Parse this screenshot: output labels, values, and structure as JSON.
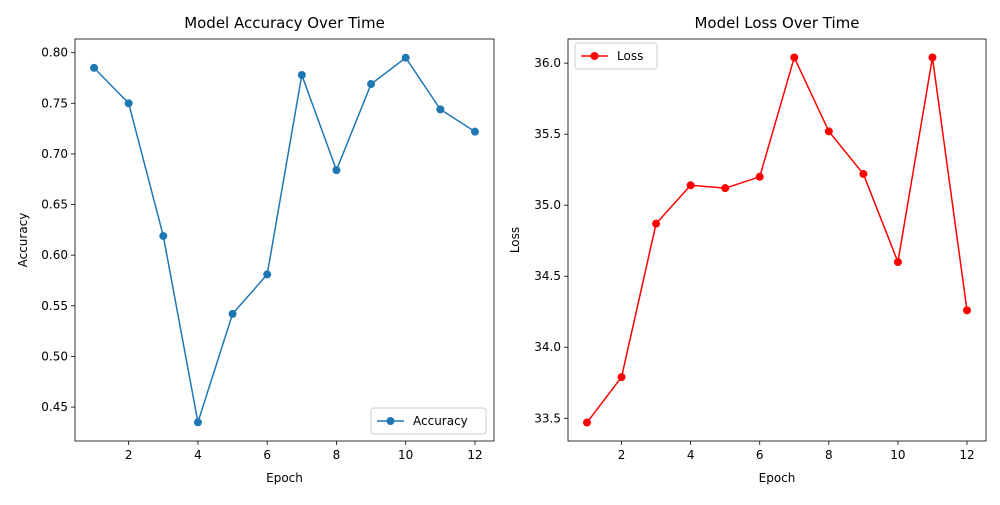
{
  "chart_data": [
    {
      "type": "line",
      "title": "Model Accuracy Over Time",
      "xlabel": "Epoch",
      "ylabel": "Accuracy",
      "xlim": [
        0.45,
        12.55
      ],
      "ylim": [
        0.4165,
        0.8135
      ],
      "xticks": [
        "2",
        "4",
        "6",
        "8",
        "10",
        "12"
      ],
      "yticks": [
        "0.45",
        "0.50",
        "0.55",
        "0.60",
        "0.65",
        "0.70",
        "0.75",
        "0.80"
      ],
      "x": [
        1,
        2,
        3,
        4,
        5,
        6,
        7,
        8,
        9,
        10,
        11,
        12
      ],
      "series": [
        {
          "name": "Accuracy",
          "color": "#1f77b4",
          "marker": "circle",
          "values": [
            0.785,
            0.75,
            0.619,
            0.435,
            0.542,
            0.581,
            0.778,
            0.684,
            0.769,
            0.795,
            0.744,
            0.722
          ]
        }
      ],
      "legend_position": "lower-right",
      "grid": false
    },
    {
      "type": "line",
      "title": "Model Loss Over Time",
      "xlabel": "Epoch",
      "ylabel": "Loss",
      "xlim": [
        0.45,
        12.55
      ],
      "ylim": [
        33.34,
        36.17
      ],
      "xticks": [
        "2",
        "4",
        "6",
        "8",
        "10",
        "12"
      ],
      "yticks": [
        "33.5",
        "34.0",
        "34.5",
        "35.0",
        "35.5",
        "36.0"
      ],
      "x": [
        1,
        2,
        3,
        4,
        5,
        6,
        7,
        8,
        9,
        10,
        11,
        12
      ],
      "series": [
        {
          "name": "Loss",
          "color": "#ff0000",
          "marker": "circle",
          "values": [
            33.47,
            33.79,
            34.87,
            35.14,
            35.12,
            35.2,
            36.04,
            35.52,
            35.22,
            34.6,
            36.04,
            34.26
          ]
        }
      ],
      "legend_position": "upper-left",
      "grid": false
    }
  ]
}
